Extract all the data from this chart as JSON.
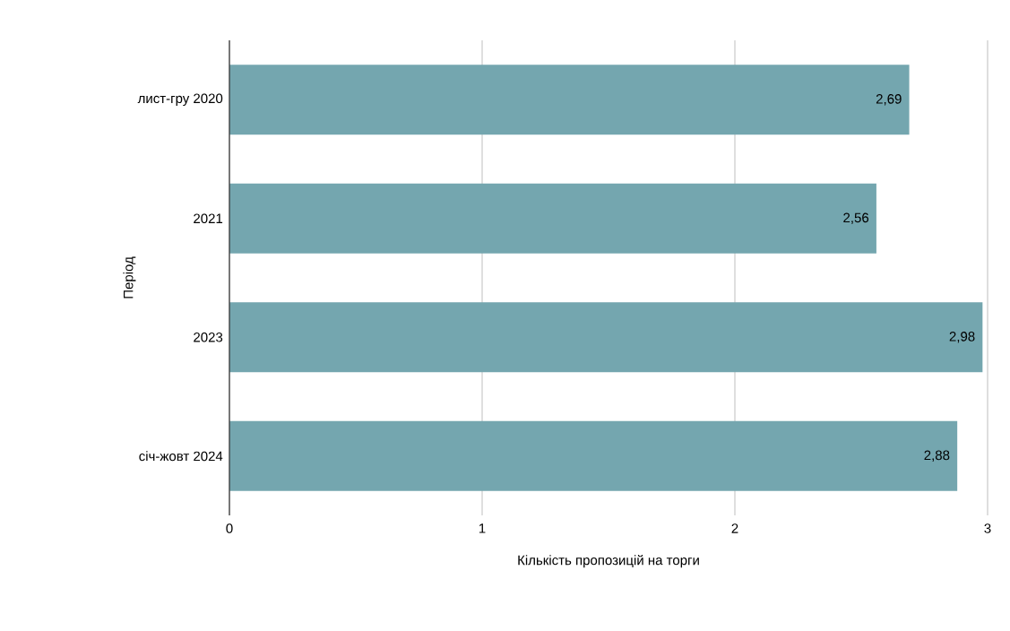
{
  "chart_data": {
    "type": "bar",
    "orientation": "horizontal",
    "xlabel": "Кількість пропозицій на торги",
    "ylabel": "Період",
    "categories": [
      "лист-гру 2020",
      "2021",
      "2023",
      "січ-жовт 2024"
    ],
    "values": [
      2.69,
      2.56,
      2.98,
      2.88
    ],
    "value_labels": [
      "2,69",
      "2,56",
      "2,98",
      "2,88"
    ],
    "color": "#74a6af",
    "xlim": [
      0,
      3
    ],
    "xticks": [
      0,
      1,
      2,
      3
    ],
    "grid": "x"
  }
}
